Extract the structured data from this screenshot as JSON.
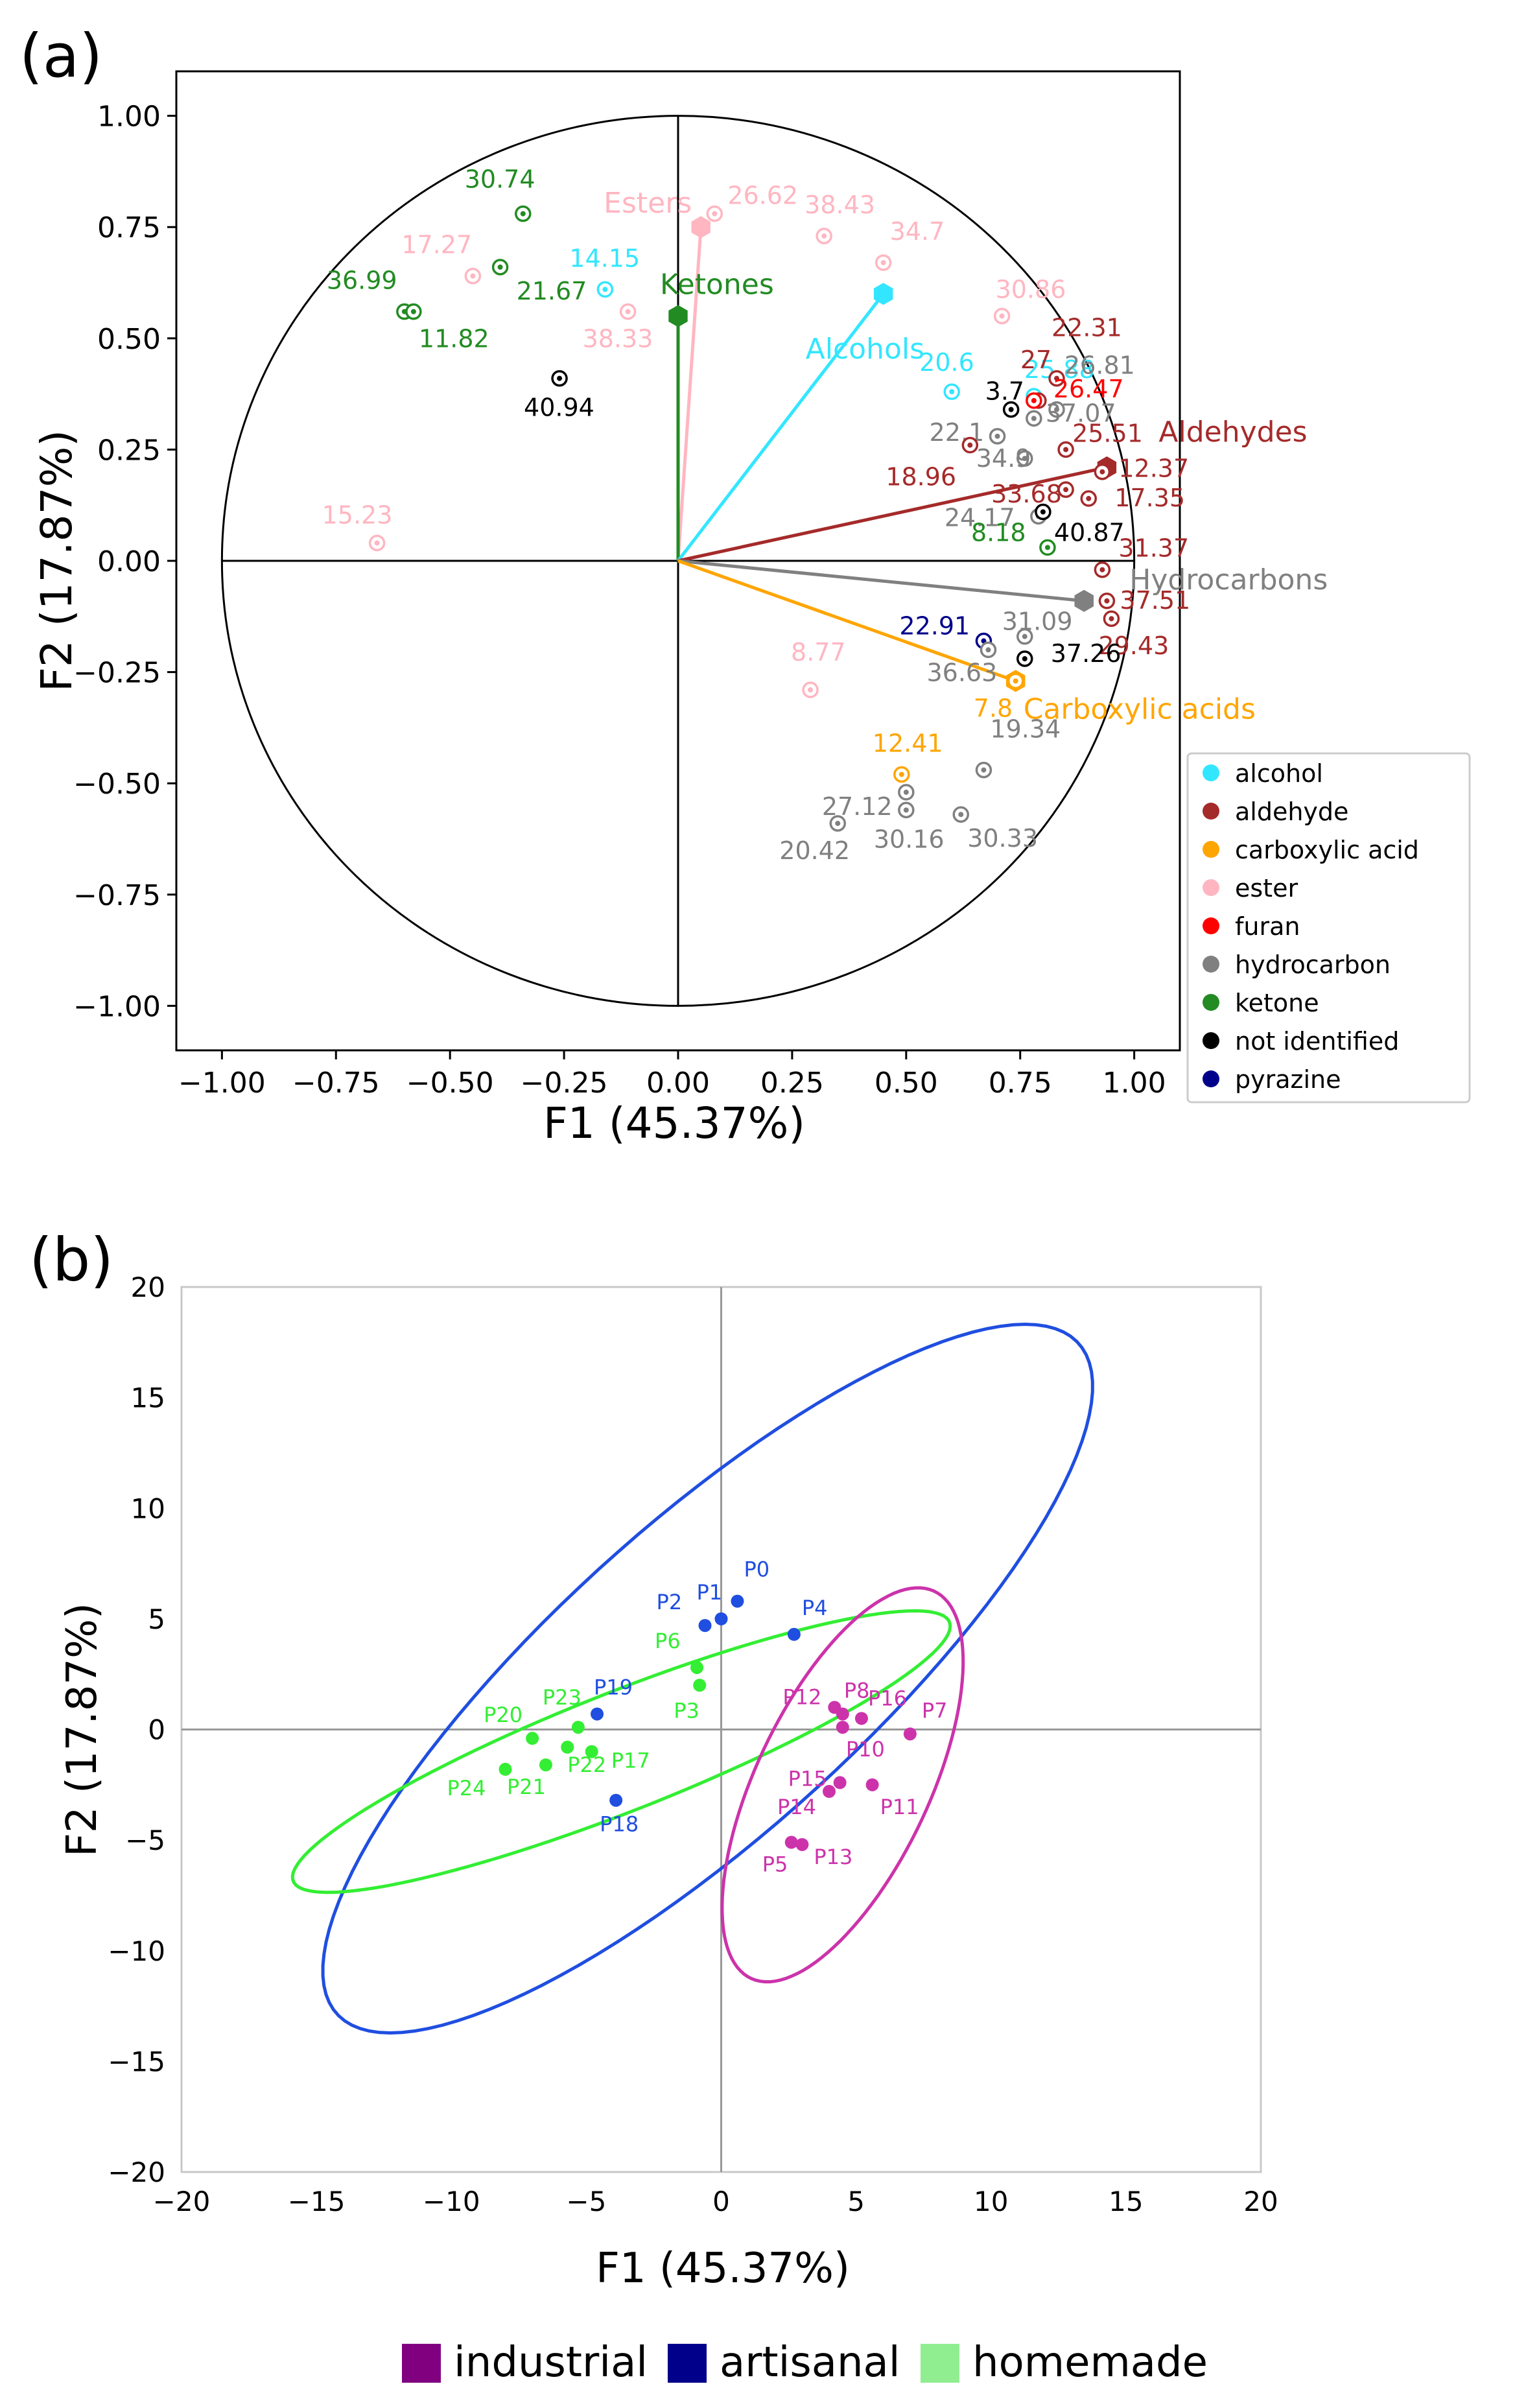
{
  "chart_data": [
    {
      "type": "scatter",
      "panel_label": "(a)",
      "xlabel": "F1 (45.37%)",
      "ylabel": "F2 (17.87%)",
      "xlim": [
        -1.1,
        1.1
      ],
      "ylim": [
        -1.1,
        1.1
      ],
      "x_ticks": [
        "−1.00",
        "−0.75",
        "−0.50",
        "−0.25",
        "0.00",
        "0.25",
        "0.50",
        "0.75",
        "1.00"
      ],
      "y_ticks": [
        "1.00",
        "0.75",
        "0.50",
        "0.25",
        "0.00",
        "−0.25",
        "−0.50",
        "−0.75",
        "−1.00"
      ],
      "unit_circle": true,
      "colors": {
        "alcohol": "#33e6ff",
        "aldehyde": "#a52a2a",
        "carboxylic acid": "#ffa500",
        "ester": "#ffb6c1",
        "furan": "#ff0000",
        "hydrocarbon": "#808080",
        "ketone": "#228b22",
        "not identified": "#000000",
        "pyrazine": "#00008b"
      },
      "vectors": [
        {
          "label": "Esters",
          "class": "ester",
          "x": 0.05,
          "y": 0.75
        },
        {
          "label": "Ketones",
          "class": "ketone",
          "x": 0.0,
          "y": 0.55
        },
        {
          "label": "Alcohols",
          "class": "alcohol",
          "x": 0.45,
          "y": 0.6
        },
        {
          "label": "Aldehydes",
          "class": "aldehyde",
          "x": 0.94,
          "y": 0.21
        },
        {
          "label": "Hydrocarbons",
          "class": "hydrocarbon",
          "x": 0.89,
          "y": -0.09
        },
        {
          "label": "Carboxylic acids",
          "class": "carboxylic acid",
          "x": 0.74,
          "y": -0.27
        }
      ],
      "points": [
        {
          "label": "30.74",
          "class": "ketone",
          "x": -0.34,
          "y": 0.78
        },
        {
          "label": "36.99",
          "class": "ketone",
          "x": -0.6,
          "y": 0.56
        },
        {
          "label": "11.82",
          "class": "ketone",
          "x": -0.58,
          "y": 0.56
        },
        {
          "label": "21.67",
          "class": "ketone",
          "x": -0.39,
          "y": 0.66
        },
        {
          "label": "17.27",
          "class": "ester",
          "x": -0.45,
          "y": 0.64
        },
        {
          "label": "14.15",
          "class": "alcohol",
          "x": -0.16,
          "y": 0.61
        },
        {
          "label": "38.33",
          "class": "ester",
          "x": -0.11,
          "y": 0.56
        },
        {
          "label": "26.62",
          "class": "ester",
          "x": 0.08,
          "y": 0.78
        },
        {
          "label": "38.43",
          "class": "ester",
          "x": 0.32,
          "y": 0.73
        },
        {
          "label": "34.7",
          "class": "ester",
          "x": 0.45,
          "y": 0.67
        },
        {
          "label": "30.86",
          "class": "ester",
          "x": 0.71,
          "y": 0.55
        },
        {
          "label": "40.94",
          "class": "not identified",
          "x": -0.26,
          "y": 0.41
        },
        {
          "label": "15.23",
          "class": "ester",
          "x": -0.66,
          "y": 0.04
        },
        {
          "label": "20.6",
          "class": "alcohol",
          "x": 0.6,
          "y": 0.38
        },
        {
          "label": "25.88",
          "class": "alcohol",
          "x": 0.78,
          "y": 0.37
        },
        {
          "label": "22.31",
          "class": "aldehyde",
          "x": 0.83,
          "y": 0.41
        },
        {
          "label": "27",
          "class": "aldehyde",
          "x": 0.79,
          "y": 0.36
        },
        {
          "label": "26.81",
          "class": "hydrocarbon",
          "x": 0.83,
          "y": 0.34
        },
        {
          "label": "26.47",
          "class": "furan",
          "x": 0.78,
          "y": 0.36
        },
        {
          "label": "3.7",
          "class": "not identified",
          "x": 0.73,
          "y": 0.34
        },
        {
          "label": "37.07",
          "class": "hydrocarbon",
          "x": 0.78,
          "y": 0.32
        },
        {
          "label": "22.1",
          "class": "hydrocarbon",
          "x": 0.7,
          "y": 0.28
        },
        {
          "label": "18.96",
          "class": "aldehyde",
          "x": 0.64,
          "y": 0.26
        },
        {
          "label": "34.9",
          "class": "hydrocarbon",
          "x": 0.76,
          "y": 0.23
        },
        {
          "label": "25.51",
          "class": "aldehyde",
          "x": 0.85,
          "y": 0.25
        },
        {
          "label": "12.37",
          "class": "aldehyde",
          "x": 0.93,
          "y": 0.2
        },
        {
          "label": "33.68",
          "class": "aldehyde",
          "x": 0.85,
          "y": 0.16
        },
        {
          "label": "17.35",
          "class": "aldehyde",
          "x": 0.9,
          "y": 0.14
        },
        {
          "label": "24.17",
          "class": "hydrocarbon",
          "x": 0.79,
          "y": 0.1
        },
        {
          "label": "40.87",
          "class": "not identified",
          "x": 0.8,
          "y": 0.11
        },
        {
          "label": "8.18",
          "class": "ketone",
          "x": 0.81,
          "y": 0.03
        },
        {
          "label": "31.37",
          "class": "aldehyde",
          "x": 0.93,
          "y": -0.02
        },
        {
          "label": "37.51",
          "class": "aldehyde",
          "x": 0.94,
          "y": -0.09
        },
        {
          "label": "29.43",
          "class": "aldehyde",
          "x": 0.95,
          "y": -0.13
        },
        {
          "label": "22.91",
          "class": "pyrazine",
          "x": 0.67,
          "y": -0.18
        },
        {
          "label": "31.09",
          "class": "hydrocarbon",
          "x": 0.76,
          "y": -0.17
        },
        {
          "label": "36.63",
          "class": "hydrocarbon",
          "x": 0.68,
          "y": -0.2
        },
        {
          "label": "37.26",
          "class": "not identified",
          "x": 0.76,
          "y": -0.22
        },
        {
          "label": "7.8",
          "class": "carboxylic acid",
          "x": 0.74,
          "y": -0.27
        },
        {
          "label": "8.77",
          "class": "ester",
          "x": 0.29,
          "y": -0.29
        },
        {
          "label": "12.41",
          "class": "carboxylic acid",
          "x": 0.49,
          "y": -0.48
        },
        {
          "label": "19.34",
          "class": "hydrocarbon",
          "x": 0.67,
          "y": -0.47
        },
        {
          "label": "27.12",
          "class": "hydrocarbon",
          "x": 0.5,
          "y": -0.52
        },
        {
          "label": "30.16",
          "class": "hydrocarbon",
          "x": 0.5,
          "y": -0.56
        },
        {
          "label": "30.33",
          "class": "hydrocarbon",
          "x": 0.62,
          "y": -0.57
        },
        {
          "label": "20.42",
          "class": "hydrocarbon",
          "x": 0.35,
          "y": -0.59
        }
      ],
      "legend": {
        "position": "right",
        "entries": [
          "alcohol",
          "aldehyde",
          "carboxylic acid",
          "ester",
          "furan",
          "hydrocarbon",
          "ketone",
          "not identified",
          "pyrazine"
        ]
      }
    },
    {
      "type": "scatter",
      "panel_label": "(b)",
      "xlabel": "F1 (45.37%)",
      "ylabel": "F2 (17.87%)",
      "xlim": [
        -20,
        20
      ],
      "ylim": [
        -20,
        20
      ],
      "x_ticks": [
        "−20",
        "−15",
        "−10",
        "−5",
        "0",
        "5",
        "10",
        "15",
        "20"
      ],
      "y_ticks": [
        "20",
        "15",
        "10",
        "5",
        "0",
        "−5",
        "−10",
        "−15",
        "−20"
      ],
      "colors": {
        "industrial": "#cc33aa",
        "artisanal": "#1f4ee0",
        "homemade": "#33ee33"
      },
      "legend_colors": {
        "industrial": "#800080",
        "artisanal": "#00008b",
        "homemade": "#90ee90"
      },
      "points": [
        {
          "label": "P0",
          "group": "artisanal",
          "x": 0.6,
          "y": 5.8
        },
        {
          "label": "P1",
          "group": "artisanal",
          "x": 0.0,
          "y": 5.0
        },
        {
          "label": "P2",
          "group": "artisanal",
          "x": -0.6,
          "y": 4.7
        },
        {
          "label": "P4",
          "group": "artisanal",
          "x": 2.7,
          "y": 4.3
        },
        {
          "label": "P19",
          "group": "artisanal",
          "x": -4.6,
          "y": 0.7
        },
        {
          "label": "P18",
          "group": "artisanal",
          "x": -3.9,
          "y": -3.2
        },
        {
          "label": "P6",
          "group": "homemade",
          "x": -0.9,
          "y": 2.8
        },
        {
          "label": "P3",
          "group": "homemade",
          "x": -0.8,
          "y": 2.0
        },
        {
          "label": "P23",
          "group": "homemade",
          "x": -5.3,
          "y": 0.1
        },
        {
          "label": "P20",
          "group": "homemade",
          "x": -7.0,
          "y": -0.4
        },
        {
          "label": "P22",
          "group": "homemade",
          "x": -5.7,
          "y": -0.8
        },
        {
          "label": "P17",
          "group": "homemade",
          "x": -4.8,
          "y": -1.0
        },
        {
          "label": "P21",
          "group": "homemade",
          "x": -6.5,
          "y": -1.6
        },
        {
          "label": "P24",
          "group": "homemade",
          "x": -8.0,
          "y": -1.8
        },
        {
          "label": "P12",
          "group": "industrial",
          "x": 4.2,
          "y": 1.0
        },
        {
          "label": "P8",
          "group": "industrial",
          "x": 4.5,
          "y": 0.7
        },
        {
          "label": "P16",
          "group": "industrial",
          "x": 5.2,
          "y": 0.5
        },
        {
          "label": "P10",
          "group": "industrial",
          "x": 4.5,
          "y": 0.1
        },
        {
          "label": "P7",
          "group": "industrial",
          "x": 7.0,
          "y": -0.2
        },
        {
          "label": "P15",
          "group": "industrial",
          "x": 4.4,
          "y": -2.4
        },
        {
          "label": "P14",
          "group": "industrial",
          "x": 4.0,
          "y": -2.8
        },
        {
          "label": "P11",
          "group": "industrial",
          "x": 5.6,
          "y": -2.5
        },
        {
          "label": "P5",
          "group": "industrial",
          "x": 2.6,
          "y": -5.1
        },
        {
          "label": "P13",
          "group": "industrial",
          "x": 3.0,
          "y": -5.2
        }
      ],
      "ellipses": [
        {
          "group": "artisanal",
          "cx": -0.5,
          "cy": 2.3,
          "rx": 20.5,
          "ry": 6.3,
          "angle_deg": 49
        },
        {
          "group": "homemade",
          "cx": -3.7,
          "cy": -1.0,
          "rx": 13.5,
          "ry": 2.6,
          "angle_deg": 26
        },
        {
          "group": "industrial",
          "cx": 4.5,
          "cy": -2.5,
          "rx": 9.4,
          "ry": 3.3,
          "angle_deg": 70
        }
      ],
      "legend": {
        "position": "bottom",
        "entries": [
          "industrial",
          "artisanal",
          "homemade"
        ]
      }
    }
  ]
}
